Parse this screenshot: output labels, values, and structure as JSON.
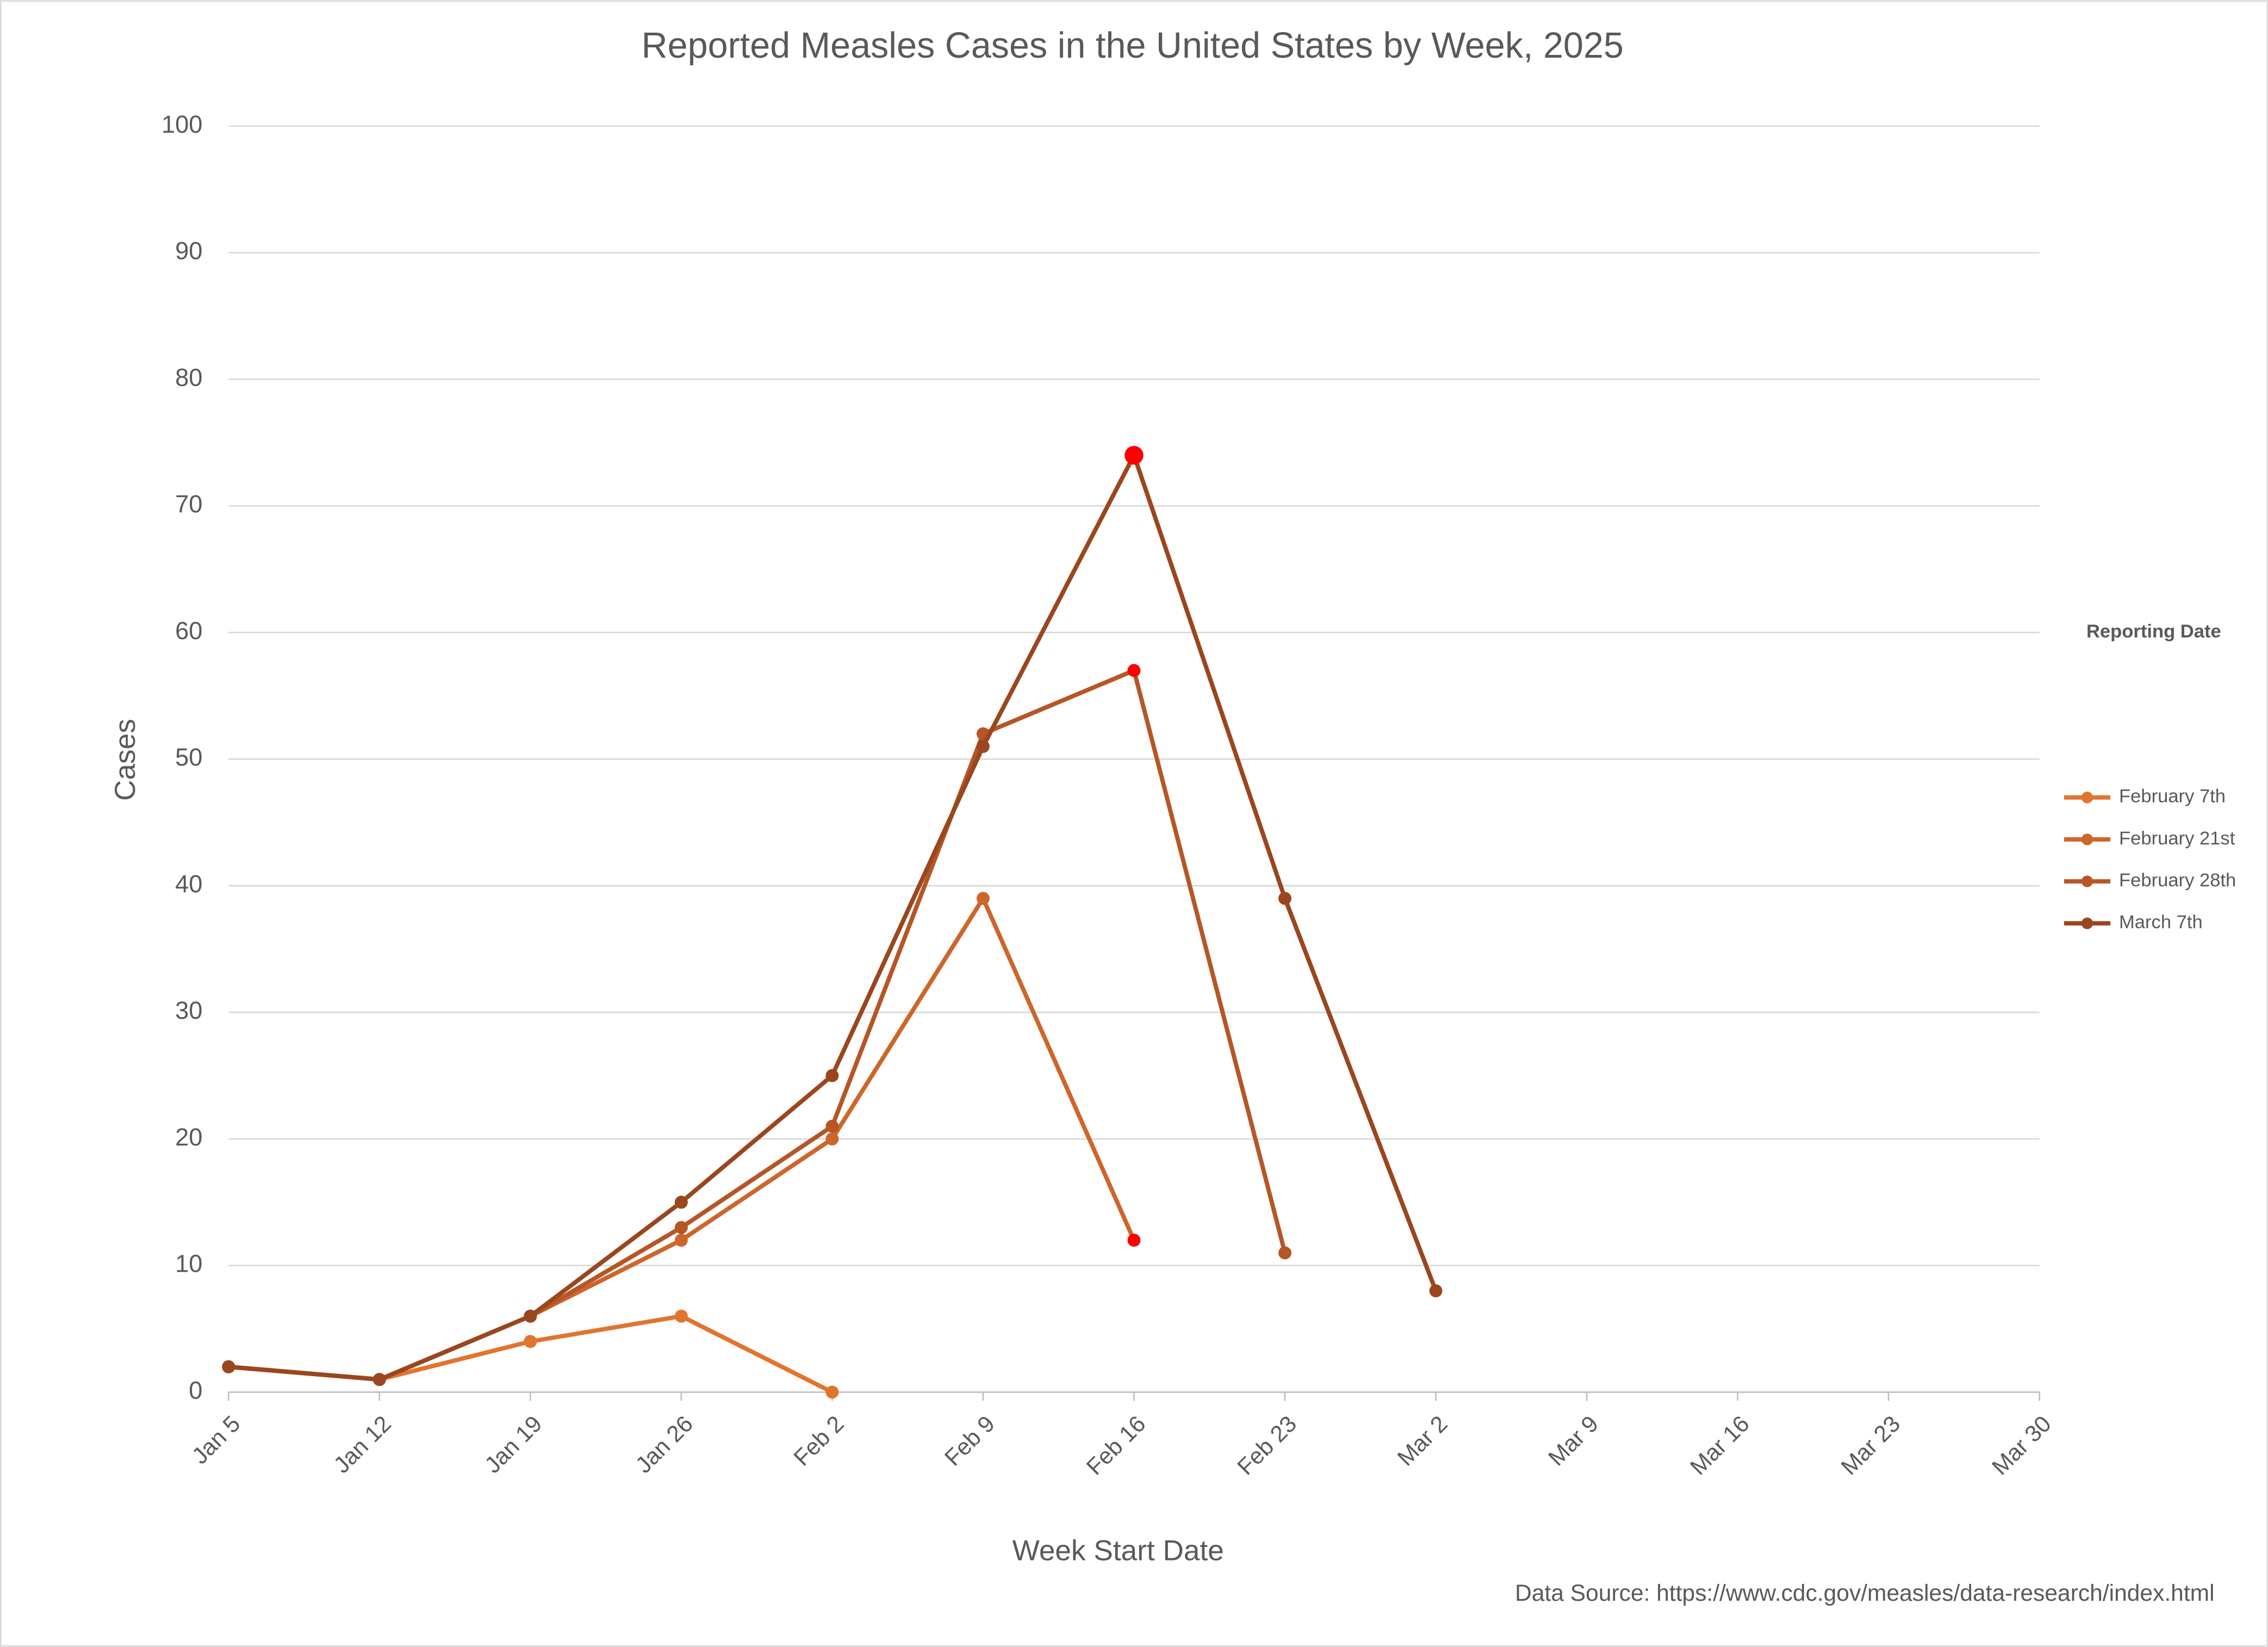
{
  "chart_data": {
    "type": "line",
    "title": "Reported Measles Cases in the United States by Week, 2025",
    "x_label": "Week Start Date",
    "y_label": "Cases",
    "source": "Data Source: https://www.cdc.gov/measles/data-research/index.html",
    "legend_title": "Reporting Date",
    "legend": "right",
    "grid": true,
    "categories": [
      "Jan 5",
      "Jan 12",
      "Jan 19",
      "Jan 26",
      "Feb 2",
      "Feb 9",
      "Feb 16",
      "Feb 23",
      "Mar 2",
      "Mar 9",
      "Mar 16",
      "Mar 23",
      "Mar 30"
    ],
    "ylim": [
      0,
      100
    ],
    "yticks": [
      0,
      10,
      20,
      30,
      40,
      50,
      60,
      70,
      80,
      90,
      100
    ],
    "highlight_color": "#ff0000",
    "series": [
      {
        "name": "February 7th",
        "color": "#e2742f",
        "values": [
          2,
          1,
          4,
          6,
          0,
          null,
          null,
          null,
          null,
          null,
          null,
          null,
          null
        ]
      },
      {
        "name": "February 21st",
        "color": "#cd662b",
        "values": [
          2,
          1,
          6,
          12,
          20,
          39,
          12,
          null,
          null,
          null,
          null,
          null,
          null
        ],
        "highlight_points": [
          6
        ]
      },
      {
        "name": "February 28th",
        "color": "#b65626",
        "values": [
          2,
          1,
          6,
          13,
          21,
          52,
          57,
          11,
          null,
          null,
          null,
          null,
          null
        ],
        "highlight_points": [
          6
        ]
      },
      {
        "name": "March 7th",
        "color": "#9a461e",
        "values": [
          2,
          1,
          6,
          15,
          25,
          51,
          74,
          39,
          8,
          null,
          null,
          null,
          null
        ],
        "highlight_points": [
          6
        ]
      }
    ]
  }
}
